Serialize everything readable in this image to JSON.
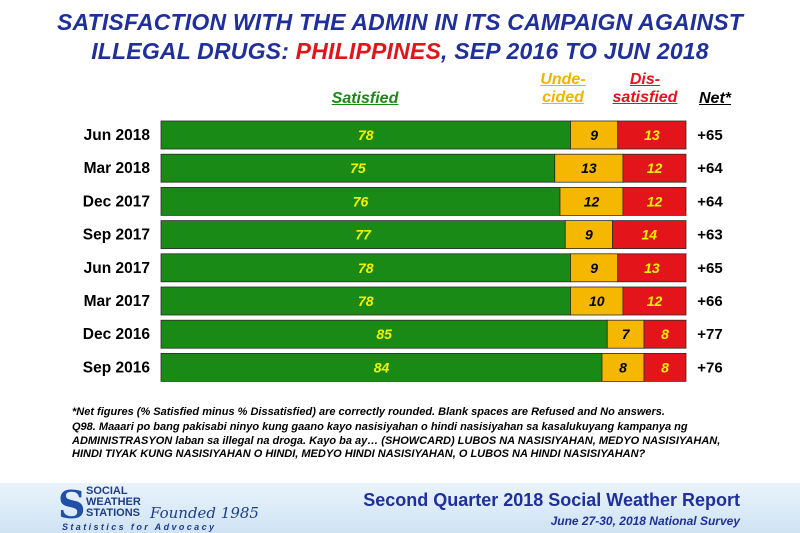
{
  "title": {
    "line1": "SATISFACTION WITH THE ADMIN IN ITS CAMPAIGN AGAINST",
    "line2_pre": "ILLEGAL DRUGS: ",
    "line2_highlight": "PHILIPPINES",
    "line2_post": ", SEP 2016 TO JUN 2018"
  },
  "headers": {
    "satisfied": "Satisfied",
    "undecided_1": "Unde-",
    "undecided_2": "cided",
    "dissatisfied_1": "Dis-",
    "dissatisfied_2": "satisfied",
    "net": "Net*"
  },
  "chart_data": {
    "type": "bar",
    "stacked": true,
    "orientation": "horizontal",
    "categories": [
      "Jun 2018",
      "Mar 2018",
      "Dec 2017",
      "Sep 2017",
      "Jun 2017",
      "Mar 2017",
      "Dec 2016",
      "Sep 2016"
    ],
    "series": [
      {
        "name": "Satisfied",
        "color": "#1a8a16",
        "label_color": "#f2f200",
        "values": [
          78,
          75,
          76,
          77,
          78,
          78,
          85,
          84
        ]
      },
      {
        "name": "Undecided",
        "color": "#f5b700",
        "label_color": "#000000",
        "values": [
          9,
          13,
          12,
          9,
          9,
          10,
          7,
          8
        ]
      },
      {
        "name": "Dissatisfied",
        "color": "#e3151a",
        "label_color": "#f2f200",
        "values": [
          13,
          12,
          12,
          14,
          13,
          12,
          8,
          8
        ]
      }
    ],
    "net": [
      "+65",
      "+64",
      "+64",
      "+63",
      "+65",
      "+66",
      "+77",
      "+76"
    ],
    "xlim": [
      0,
      100
    ]
  },
  "footnotes": {
    "note1": "*Net figures (% Satisfied minus % Dissatisfied) are correctly rounded. Blank spaces are Refused and No answers.",
    "note2": "Q98. Maaari po bang pakisabi ninyo kung gaano kayo nasisiyahan o hindi nasisiyahan sa kasalukuyang kampanya ng ADMINISTRASYON laban sa illegal na droga.  Kayo ba ay… (SHOWCARD) LUBOS NA NASISIYAHAN, MEDYO NASISIYAHAN, HINDI TIYAK KUNG NASISIYAHAN O HINDI, MEDYO HINDI NASISIYAHAN, O LUBOS NA HINDI NASISIYAHAN?"
  },
  "banner": {
    "logo_line1": "SOCIAL",
    "logo_line2": "WEATHER",
    "logo_line3": "STATIONS",
    "founded": "Founded 1985",
    "tagline": "Statistics for Advocacy",
    "report": "Second Quarter 2018 Social Weather Report",
    "survey": "June 27-30, 2018 National Survey"
  },
  "icons": {
    "logo": "sws-s-logo-icon"
  }
}
